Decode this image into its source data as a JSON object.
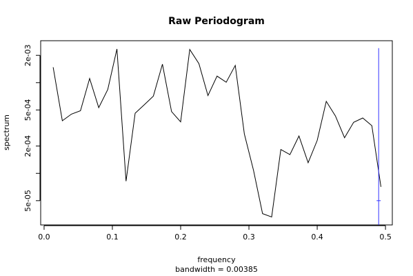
{
  "chart_data": {
    "type": "line",
    "title": "Raw Periodogram",
    "xlabel": "frequency",
    "xlabel_sub": "bandwidth = 0.00385",
    "ylabel": "spectrum",
    "y_scale": "log",
    "xlim": [
      -0.005,
      0.51
    ],
    "ylim": [
      2.7e-05,
      0.0029
    ],
    "x_ticks": [
      0.0,
      0.1,
      0.2,
      0.3,
      0.4,
      0.5
    ],
    "x_tick_labels": [
      "0.0",
      "0.1",
      "0.2",
      "0.3",
      "0.4",
      "0.5"
    ],
    "y_ticks": [
      5e-05,
      0.0001,
      0.0002,
      0.0005,
      0.001,
      0.002
    ],
    "y_tick_labels": [
      "5e-05",
      "",
      "2e-04",
      "5e-04",
      "",
      "2e-03"
    ],
    "series": [
      {
        "color": "#000000",
        "x": [
          0.0133,
          0.0267,
          0.04,
          0.0533,
          0.0667,
          0.08,
          0.0933,
          0.1067,
          0.12,
          0.1333,
          0.1467,
          0.16,
          0.1733,
          0.1867,
          0.2,
          0.2133,
          0.2267,
          0.24,
          0.2533,
          0.2667,
          0.28,
          0.2933,
          0.3067,
          0.32,
          0.3333,
          0.3467,
          0.36,
          0.3733,
          0.3867,
          0.4,
          0.4133,
          0.4267,
          0.44,
          0.4533,
          0.4667,
          0.48,
          0.4933
        ],
        "y": [
          0.00148,
          0.00038,
          0.00045,
          0.00049,
          0.00111,
          0.00053,
          0.00084,
          0.00235,
          8.2e-05,
          0.00046,
          0.00057,
          0.00071,
          0.0016,
          0.00048,
          0.00037,
          0.00232,
          0.00162,
          0.00072,
          0.00118,
          0.00101,
          0.00155,
          0.000272,
          0.000108,
          3.6e-05,
          3.3e-05,
          0.000183,
          0.000161,
          0.000258,
          0.000131,
          0.000231,
          0.000622,
          0.000429,
          0.000247,
          0.000365,
          0.000408,
          0.000336,
          7.1e-05
        ]
      }
    ],
    "confidence_bar": {
      "color": "#3333ff",
      "x": 0.49,
      "lower": 2.5e-05,
      "upper": 0.0024,
      "center": 5e-05
    }
  }
}
